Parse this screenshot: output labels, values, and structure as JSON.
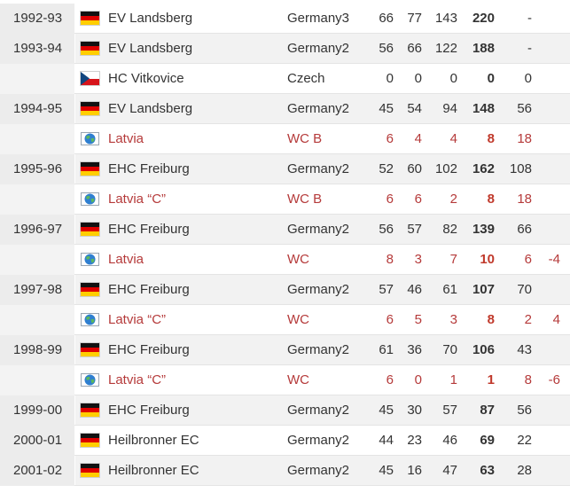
{
  "rows": [
    {
      "season": "1992-93",
      "flag": "germany-flag-icon",
      "team": "EV Landsberg",
      "league": "Germany3",
      "gp": "66",
      "g": "77",
      "a": "143",
      "tp": "220",
      "pim": "-",
      "pm": "",
      "intl": false,
      "shaded": false
    },
    {
      "season": "1993-94",
      "flag": "germany-flag-icon",
      "team": "EV Landsberg",
      "league": "Germany2",
      "gp": "56",
      "g": "66",
      "a": "122",
      "tp": "188",
      "pim": "-",
      "pm": "",
      "intl": false,
      "shaded": true
    },
    {
      "season": "",
      "flag": "czech-flag-icon",
      "team": "HC Vitkovice",
      "league": "Czech",
      "gp": "0",
      "g": "0",
      "a": "0",
      "tp": "0",
      "pim": "0",
      "pm": "",
      "intl": false,
      "shaded": false
    },
    {
      "season": "1994-95",
      "flag": "germany-flag-icon",
      "team": "EV Landsberg",
      "league": "Germany2",
      "gp": "45",
      "g": "54",
      "a": "94",
      "tp": "148",
      "pim": "56",
      "pm": "",
      "intl": false,
      "shaded": true
    },
    {
      "season": "",
      "flag": "globe-icon",
      "team": "Latvia",
      "league": "WC B",
      "gp": "6",
      "g": "4",
      "a": "4",
      "tp": "8",
      "pim": "18",
      "pm": "",
      "intl": true,
      "shaded": false
    },
    {
      "season": "1995-96",
      "flag": "germany-flag-icon",
      "team": "EHC Freiburg",
      "league": "Germany2",
      "gp": "52",
      "g": "60",
      "a": "102",
      "tp": "162",
      "pim": "108",
      "pm": "",
      "intl": false,
      "shaded": true
    },
    {
      "season": "",
      "flag": "globe-icon",
      "team": "Latvia “C”",
      "league": "WC B",
      "gp": "6",
      "g": "6",
      "a": "2",
      "tp": "8",
      "pim": "18",
      "pm": "",
      "intl": true,
      "shaded": false
    },
    {
      "season": "1996-97",
      "flag": "germany-flag-icon",
      "team": "EHC Freiburg",
      "league": "Germany2",
      "gp": "56",
      "g": "57",
      "a": "82",
      "tp": "139",
      "pim": "66",
      "pm": "",
      "intl": false,
      "shaded": true
    },
    {
      "season": "",
      "flag": "globe-icon",
      "team": "Latvia",
      "league": "WC",
      "gp": "8",
      "g": "3",
      "a": "7",
      "tp": "10",
      "pim": "6",
      "pm": "-4",
      "intl": true,
      "shaded": false
    },
    {
      "season": "1997-98",
      "flag": "germany-flag-icon",
      "team": "EHC Freiburg",
      "league": "Germany2",
      "gp": "57",
      "g": "46",
      "a": "61",
      "tp": "107",
      "pim": "70",
      "pm": "",
      "intl": false,
      "shaded": true
    },
    {
      "season": "",
      "flag": "globe-icon",
      "team": "Latvia “C”",
      "league": "WC",
      "gp": "6",
      "g": "5",
      "a": "3",
      "tp": "8",
      "pim": "2",
      "pm": "4",
      "intl": true,
      "shaded": false
    },
    {
      "season": "1998-99",
      "flag": "germany-flag-icon",
      "team": "EHC Freiburg",
      "league": "Germany2",
      "gp": "61",
      "g": "36",
      "a": "70",
      "tp": "106",
      "pim": "43",
      "pm": "",
      "intl": false,
      "shaded": true
    },
    {
      "season": "",
      "flag": "globe-icon",
      "team": "Latvia “C”",
      "league": "WC",
      "gp": "6",
      "g": "0",
      "a": "1",
      "tp": "1",
      "pim": "8",
      "pm": "-6",
      "intl": true,
      "shaded": false
    },
    {
      "season": "1999-00",
      "flag": "germany-flag-icon",
      "team": "EHC Freiburg",
      "league": "Germany2",
      "gp": "45",
      "g": "30",
      "a": "57",
      "tp": "87",
      "pim": "56",
      "pm": "",
      "intl": false,
      "shaded": true
    },
    {
      "season": "2000-01",
      "flag": "germany-flag-icon",
      "team": "Heilbronner EC",
      "league": "Germany2",
      "gp": "44",
      "g": "23",
      "a": "46",
      "tp": "69",
      "pim": "22",
      "pm": "",
      "intl": false,
      "shaded": false
    },
    {
      "season": "2001-02",
      "flag": "germany-flag-icon",
      "team": "Heilbronner EC",
      "league": "Germany2",
      "gp": "45",
      "g": "16",
      "a": "47",
      "tp": "63",
      "pim": "28",
      "pm": "",
      "intl": false,
      "shaded": true
    }
  ]
}
